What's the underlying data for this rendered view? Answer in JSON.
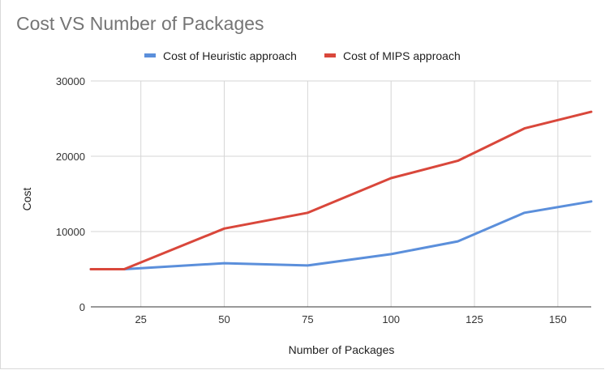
{
  "chart_data": {
    "type": "line",
    "title": "Cost VS Number of Packages",
    "xlabel": "Number of Packages",
    "ylabel": "Cost",
    "xlim": [
      10,
      160
    ],
    "ylim": [
      0,
      30000
    ],
    "x_ticks": [
      25,
      50,
      75,
      100,
      125,
      150
    ],
    "y_ticks": [
      0,
      10000,
      20000,
      30000
    ],
    "grid": true,
    "legend_position": "top",
    "x": [
      10,
      20,
      50,
      75,
      100,
      120,
      140,
      160
    ],
    "series": [
      {
        "name": "Cost of Heuristic approach",
        "color": "#5b8fdb",
        "values": [
          5000,
          5000,
          5800,
          5500,
          7000,
          8700,
          12500,
          14000
        ]
      },
      {
        "name": "Cost of MIPS approach",
        "color": "#d9473b",
        "values": [
          5000,
          5000,
          10400,
          12500,
          17100,
          19400,
          23700,
          25900
        ]
      }
    ]
  }
}
